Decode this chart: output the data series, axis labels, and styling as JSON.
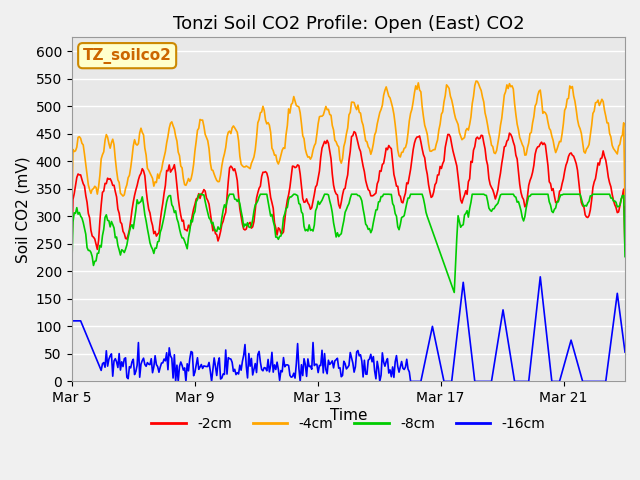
{
  "title": "Tonzi Soil CO2 Profile: Open (East) CO2",
  "ylabel": "Soil CO2 (mV)",
  "xlabel": "Time",
  "watermark": "TZ_soilco2",
  "ylim": [
    0,
    625
  ],
  "yticks": [
    0,
    50,
    100,
    150,
    200,
    250,
    300,
    350,
    400,
    450,
    500,
    550,
    600
  ],
  "xtick_labels": [
    "Mar 5",
    "Mar 9",
    "Mar 13",
    "Mar 17",
    "Mar 21"
  ],
  "xtick_positions": [
    0,
    4,
    8,
    12,
    16
  ],
  "colors": {
    "m2cm": "#ff0000",
    "m4cm": "#ffa500",
    "m8cm": "#00cc00",
    "m16cm": "#0000ff"
  },
  "legend_labels": [
    "-2cm",
    "-4cm",
    "-8cm",
    "-16cm"
  ],
  "title_fontsize": 13,
  "label_fontsize": 11,
  "tick_fontsize": 10
}
